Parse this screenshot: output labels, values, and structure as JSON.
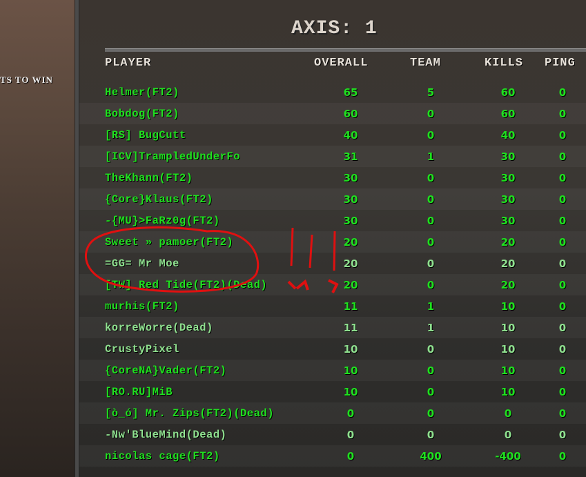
{
  "objective_text": "TS TO WIN",
  "team_title": "AXIS: 1",
  "columns": {
    "player": "PLAYER",
    "overall": "OVERALL",
    "team": "TEAM",
    "kills": "KILLS",
    "ping": "PING"
  },
  "colors": {
    "player_text": "#1fe01f",
    "player_text_pale": "#8fe08f",
    "header_text": "#e8e2da",
    "annotation": "#e01010"
  },
  "rows": [
    {
      "name": "Helmer(FT2)",
      "overall": "65",
      "team": "5",
      "kills": "60",
      "ping": "0",
      "style": "bright"
    },
    {
      "name": "Bobdog(FT2)",
      "overall": "60",
      "team": "0",
      "kills": "60",
      "ping": "0",
      "style": "bright"
    },
    {
      "name": "[RS] BugCutt",
      "overall": "40",
      "team": "0",
      "kills": "40",
      "ping": "0",
      "style": "bright"
    },
    {
      "name": "[ICV]TrampledUnderFo",
      "overall": "31",
      "team": "1",
      "kills": "30",
      "ping": "0",
      "style": "bright"
    },
    {
      "name": "TheKhann(FT2)",
      "overall": "30",
      "team": "0",
      "kills": "30",
      "ping": "0",
      "style": "bright"
    },
    {
      "name": "{Core}Klaus(FT2)",
      "overall": "30",
      "team": "0",
      "kills": "30",
      "ping": "0",
      "style": "bright"
    },
    {
      "name": "-{MU}>FaRz0g(FT2)",
      "overall": "30",
      "team": "0",
      "kills": "30",
      "ping": "0",
      "style": "bright"
    },
    {
      "name": "Sweet » pamoer(FT2)",
      "overall": "20",
      "team": "0",
      "kills": "20",
      "ping": "0",
      "style": "bright"
    },
    {
      "name": "=GG= Mr Moe",
      "overall": "20",
      "team": "0",
      "kills": "20",
      "ping": "0",
      "style": "pale"
    },
    {
      "name": "[TW] Red Tide(FT2)(Dead)",
      "overall": "20",
      "team": "0",
      "kills": "20",
      "ping": "0",
      "style": "bright"
    },
    {
      "name": "murhis(FT2)",
      "overall": "11",
      "team": "1",
      "kills": "10",
      "ping": "0",
      "style": "bright"
    },
    {
      "name": "korreWorre(Dead)",
      "overall": "11",
      "team": "1",
      "kills": "10",
      "ping": "0",
      "style": "pale"
    },
    {
      "name": "CrustyPixel",
      "overall": "10",
      "team": "0",
      "kills": "10",
      "ping": "0",
      "style": "pale"
    },
    {
      "name": "{CoreNA}Vader(FT2)",
      "overall": "10",
      "team": "0",
      "kills": "10",
      "ping": "0",
      "style": "bright"
    },
    {
      "name": "[RO.RU]MiB",
      "overall": "10",
      "team": "0",
      "kills": "10",
      "ping": "0",
      "style": "bright"
    },
    {
      "name": "[ò_ó] Mr. Zips(FT2)(Dead)",
      "overall": "0",
      "team": "0",
      "kills": "0",
      "ping": "0",
      "style": "bright"
    },
    {
      "name": "-Nw'BlueMind(Dead)",
      "overall": "0",
      "team": "0",
      "kills": "0",
      "ping": "0",
      "style": "pale"
    },
    {
      "name": "nicolas cage(FT2)",
      "overall": "0",
      "team": "400",
      "kills": "-400",
      "ping": "0",
      "style": "bright"
    }
  ]
}
